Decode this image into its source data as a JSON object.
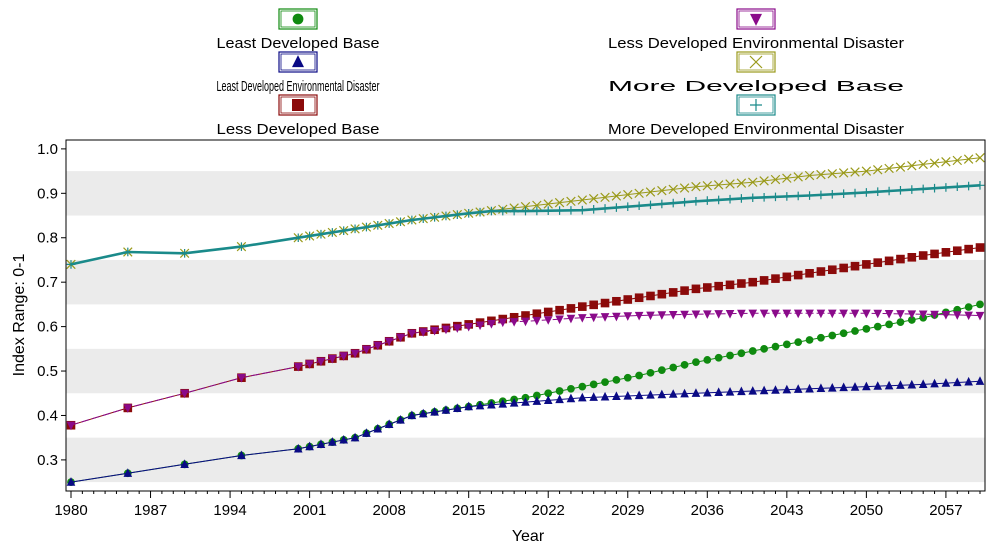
{
  "chart_data": {
    "type": "line",
    "title": "",
    "xlabel": "Year",
    "ylabel": "Index Range: 0-1",
    "xlim": [
      1980,
      2060
    ],
    "ylim": [
      0.23,
      1.02
    ],
    "x_ticks": [
      "1980",
      "1987",
      "1994",
      "2001",
      "2008",
      "2015",
      "2022",
      "2029",
      "2036",
      "2043",
      "2050",
      "2057"
    ],
    "y_ticks": [
      "0.3",
      "0.4",
      "0.5",
      "0.6",
      "0.7",
      "0.8",
      "0.9",
      "1.0"
    ],
    "grid": "horizontal bands",
    "legend_position": "top",
    "series": [
      {
        "name": "Least Developed Base",
        "color": "#0f8a0f",
        "marker": "circle",
        "anchors": [
          [
            1980,
            0.25
          ],
          [
            1985,
            0.27
          ],
          [
            1990,
            0.29
          ],
          [
            1995,
            0.31
          ],
          [
            2000,
            0.325
          ],
          [
            2005,
            0.35
          ],
          [
            2008,
            0.38
          ],
          [
            2010,
            0.4
          ],
          [
            2015,
            0.42
          ],
          [
            2020,
            0.44
          ],
          [
            2025,
            0.465
          ],
          [
            2030,
            0.49
          ],
          [
            2035,
            0.52
          ],
          [
            2040,
            0.545
          ],
          [
            2045,
            0.57
          ],
          [
            2050,
            0.595
          ],
          [
            2055,
            0.62
          ],
          [
            2060,
            0.65
          ]
        ]
      },
      {
        "name": "Least Developed Environmental Disaster",
        "color": "#0a0a85",
        "marker": "triangle-up",
        "anchors": [
          [
            1980,
            0.25
          ],
          [
            1985,
            0.27
          ],
          [
            1990,
            0.29
          ],
          [
            1995,
            0.31
          ],
          [
            2000,
            0.325
          ],
          [
            2005,
            0.35
          ],
          [
            2008,
            0.38
          ],
          [
            2010,
            0.4
          ],
          [
            2015,
            0.42
          ],
          [
            2020,
            0.43
          ],
          [
            2025,
            0.44
          ],
          [
            2030,
            0.445
          ],
          [
            2035,
            0.45
          ],
          [
            2040,
            0.455
          ],
          [
            2045,
            0.46
          ],
          [
            2050,
            0.465
          ],
          [
            2055,
            0.47
          ],
          [
            2060,
            0.477
          ]
        ]
      },
      {
        "name": "Less Developed Base",
        "color": "#8b0a0a",
        "marker": "square",
        "anchors": [
          [
            1980,
            0.378
          ],
          [
            1985,
            0.417
          ],
          [
            1990,
            0.45
          ],
          [
            1995,
            0.485
          ],
          [
            2000,
            0.51
          ],
          [
            2005,
            0.54
          ],
          [
            2010,
            0.585
          ],
          [
            2015,
            0.605
          ],
          [
            2020,
            0.625
          ],
          [
            2025,
            0.645
          ],
          [
            2030,
            0.665
          ],
          [
            2035,
            0.685
          ],
          [
            2040,
            0.7
          ],
          [
            2045,
            0.72
          ],
          [
            2050,
            0.74
          ],
          [
            2055,
            0.76
          ],
          [
            2060,
            0.778
          ]
        ]
      },
      {
        "name": "Less Developed Environmental Disaster",
        "color": "#8a0a8a",
        "marker": "triangle-down",
        "anchors": [
          [
            1980,
            0.378
          ],
          [
            1985,
            0.417
          ],
          [
            1990,
            0.45
          ],
          [
            1995,
            0.485
          ],
          [
            2000,
            0.51
          ],
          [
            2005,
            0.54
          ],
          [
            2010,
            0.585
          ],
          [
            2015,
            0.6
          ],
          [
            2018,
            0.61
          ],
          [
            2020,
            0.612
          ],
          [
            2025,
            0.62
          ],
          [
            2030,
            0.625
          ],
          [
            2035,
            0.628
          ],
          [
            2040,
            0.63
          ],
          [
            2045,
            0.63
          ],
          [
            2050,
            0.63
          ],
          [
            2055,
            0.628
          ],
          [
            2060,
            0.625
          ]
        ]
      },
      {
        "name": "More Developed Base",
        "color": "#9a9a1a",
        "marker": "x",
        "anchors": [
          [
            1980,
            0.74
          ],
          [
            1985,
            0.768
          ],
          [
            1990,
            0.765
          ],
          [
            1995,
            0.78
          ],
          [
            2000,
            0.8
          ],
          [
            2005,
            0.82
          ],
          [
            2010,
            0.84
          ],
          [
            2015,
            0.855
          ],
          [
            2020,
            0.87
          ],
          [
            2025,
            0.885
          ],
          [
            2030,
            0.9
          ],
          [
            2035,
            0.915
          ],
          [
            2040,
            0.925
          ],
          [
            2045,
            0.94
          ],
          [
            2050,
            0.95
          ],
          [
            2055,
            0.965
          ],
          [
            2060,
            0.98
          ]
        ]
      },
      {
        "name": "More Developed Environmental Disaster",
        "color": "#1a8a8a",
        "marker": "plus",
        "anchors": [
          [
            1980,
            0.74
          ],
          [
            1985,
            0.768
          ],
          [
            1990,
            0.765
          ],
          [
            1995,
            0.78
          ],
          [
            2000,
            0.8
          ],
          [
            2005,
            0.82
          ],
          [
            2010,
            0.84
          ],
          [
            2015,
            0.855
          ],
          [
            2017,
            0.86
          ],
          [
            2020,
            0.86
          ],
          [
            2025,
            0.862
          ],
          [
            2030,
            0.872
          ],
          [
            2035,
            0.882
          ],
          [
            2040,
            0.89
          ],
          [
            2045,
            0.895
          ],
          [
            2050,
            0.902
          ],
          [
            2055,
            0.91
          ],
          [
            2060,
            0.918
          ]
        ]
      }
    ]
  }
}
